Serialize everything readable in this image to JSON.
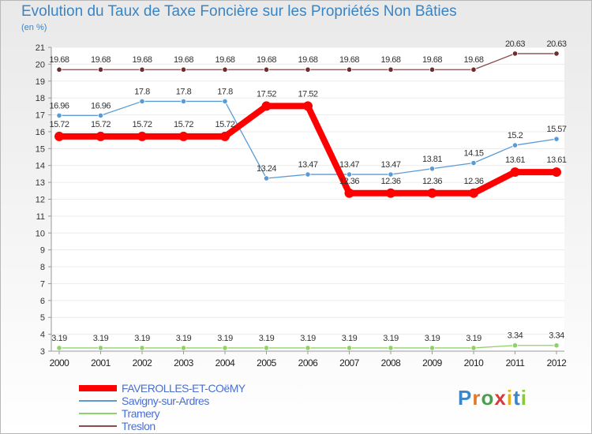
{
  "title": "Evolution du Taux de Taxe Foncière sur les Propriétés Non Bâties",
  "subtitle": "(en %)",
  "chart_data": {
    "type": "line",
    "title": "Evolution du Taux de Taxe Foncière sur les Propriétés Non Bâties",
    "ylabel": "(en %)",
    "xlabel": "",
    "x": [
      "2000",
      "2001",
      "2002",
      "2003",
      "2004",
      "2005",
      "2006",
      "2007",
      "2008",
      "2009",
      "2010",
      "2011",
      "2012"
    ],
    "ylim": [
      3,
      21
    ],
    "yticks": [
      "3",
      "4",
      "5",
      "6",
      "7",
      "8",
      "9",
      "10",
      "11",
      "12",
      "13",
      "14",
      "15",
      "16",
      "17",
      "18",
      "19",
      "20",
      "21"
    ],
    "legend_position": "bottom-left",
    "series": [
      {
        "name": "FAVEROLLES-ET-COëMY",
        "color": "#ff0000",
        "values": [
          15.72,
          15.72,
          15.72,
          15.72,
          15.72,
          17.52,
          17.52,
          12.36,
          12.36,
          12.36,
          12.36,
          13.61,
          13.61
        ],
        "labels": [
          "15.72",
          "15.72",
          "15.72",
          "15.72",
          "15.72",
          "17.52",
          "17.52",
          "12.36",
          "12.36",
          "12.36",
          "12.36",
          "13.61",
          "13.61"
        ]
      },
      {
        "name": "Savigny-sur-Ardres",
        "color": "#5b9bd5",
        "values": [
          16.96,
          16.96,
          17.8,
          17.8,
          17.8,
          13.24,
          13.47,
          13.47,
          13.47,
          13.81,
          14.15,
          15.2,
          15.57
        ],
        "labels": [
          "16.96",
          "16.96",
          "17.8",
          "17.8",
          "17.8",
          "13.24",
          "13.47",
          "13.47",
          "13.47",
          "13.81",
          "14.15",
          "15.2",
          "15.57"
        ]
      },
      {
        "name": "Tramery",
        "color": "#8fd16a",
        "values": [
          3.19,
          3.19,
          3.19,
          3.19,
          3.19,
          3.19,
          3.19,
          3.19,
          3.19,
          3.19,
          3.19,
          3.34,
          3.34
        ],
        "labels": [
          "3.19",
          "3.19",
          "3.19",
          "3.19",
          "3.19",
          "3.19",
          "3.19",
          "3.19",
          "3.19",
          "3.19",
          "3.19",
          "3.34",
          "3.34"
        ]
      },
      {
        "name": "Treslon",
        "color": "#8b4a4a",
        "values": [
          19.68,
          19.68,
          19.68,
          19.68,
          19.68,
          19.68,
          19.68,
          19.68,
          19.68,
          19.68,
          19.68,
          20.63,
          20.63
        ],
        "labels": [
          "19.68",
          "19.68",
          "19.68",
          "19.68",
          "19.68",
          "19.68",
          "19.68",
          "19.68",
          "19.68",
          "19.68",
          "19.68",
          "20.63",
          "20.63"
        ]
      }
    ]
  },
  "logo": {
    "letters": [
      "P",
      "r",
      "o",
      "x",
      "i",
      "t",
      "i"
    ],
    "colors": [
      "#3a86c8",
      "#e07a2a",
      "#4aa04a",
      "#d43c3c",
      "#e0b020",
      "#3a86c8",
      "#8cc63f"
    ]
  }
}
